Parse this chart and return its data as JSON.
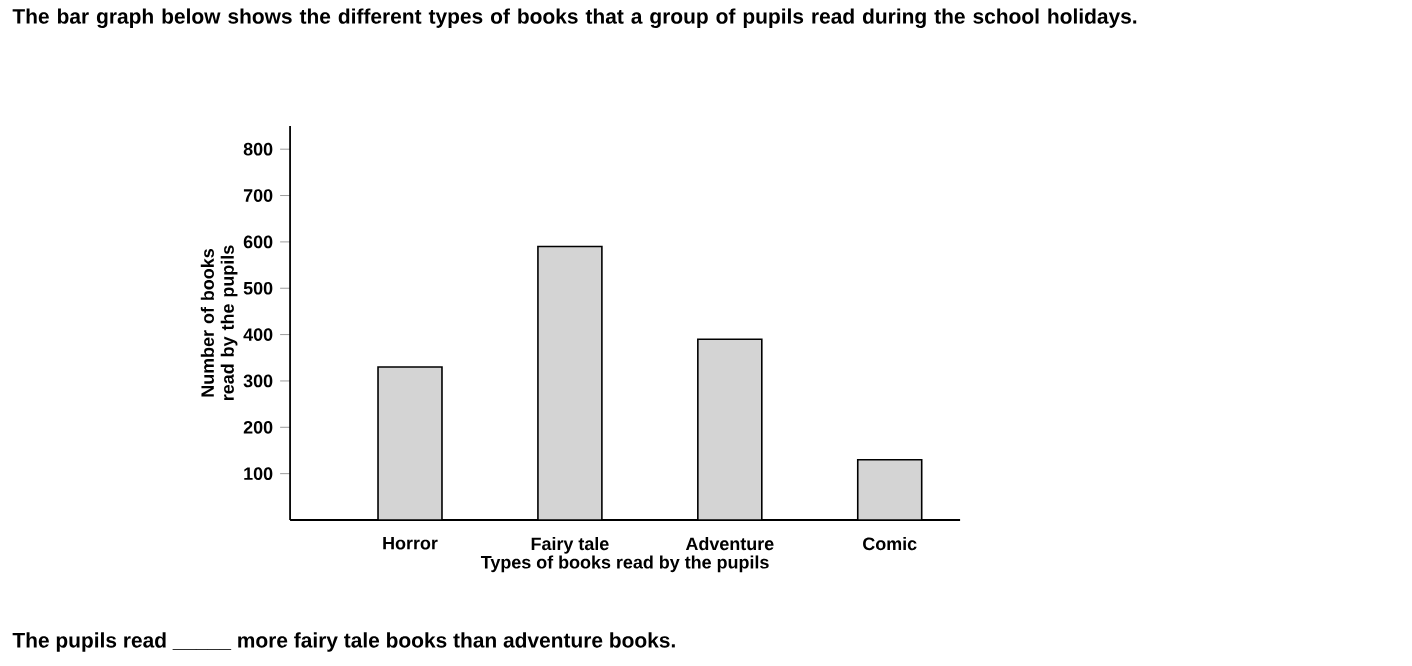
{
  "chart_data": {
    "type": "bar",
    "title": "The bar graph below shows the different types of books that a group of pupils read during the school holidays.",
    "xlabel": "Types of books read by the pupils",
    "ylabel": "Number of books read by the pupils",
    "categories": [
      "Horror",
      "Fairy tale",
      "Adventure",
      "Comic"
    ],
    "values": [
      330,
      590,
      390,
      130
    ],
    "color": "#d4d4d4",
    "ylim": [
      0,
      850
    ],
    "yticks": [
      100,
      200,
      300,
      400,
      500,
      600,
      700,
      800
    ],
    "annotations": [
      "The pupils read _____ more fairy tale books than adventure books."
    ]
  }
}
